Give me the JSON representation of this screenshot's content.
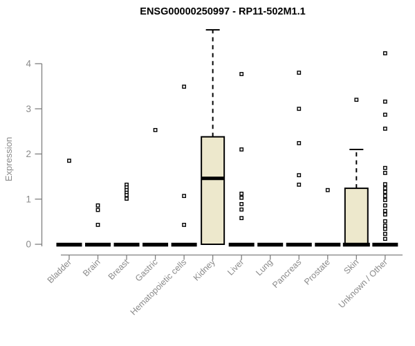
{
  "page": {
    "background": "#ffffff"
  },
  "chart_data": {
    "type": "boxplot",
    "title": "ENSG00000250997 - RP11-502M1.1",
    "ylabel": "Expression",
    "xlabel": "",
    "ylim": [
      0,
      4.9
    ],
    "yticks": [
      0,
      1,
      2,
      3,
      4
    ],
    "grid": false,
    "legend": false,
    "categories": [
      "Bladder",
      "Brain",
      "Breast",
      "Gastric",
      "Hematopoietic cells",
      "Kidney",
      "Liver",
      "Lung",
      "Pancreas",
      "Prostate",
      "Skin",
      "Unknown / Other"
    ],
    "series": [
      {
        "name": "Bladder",
        "min": 0,
        "q1": 0,
        "median": 0,
        "q3": 0,
        "max": 0,
        "outliers": [
          1.85
        ]
      },
      {
        "name": "Brain",
        "min": 0,
        "q1": 0,
        "median": 0,
        "q3": 0,
        "max": 0,
        "outliers": [
          0.86,
          0.76,
          0.43
        ]
      },
      {
        "name": "Breast",
        "min": 0,
        "q1": 0,
        "median": 0,
        "q3": 0,
        "max": 0,
        "outliers": [
          1.32,
          1.26,
          1.2,
          1.14,
          1.09,
          1.01
        ]
      },
      {
        "name": "Gastric",
        "min": 0,
        "q1": 0,
        "median": 0,
        "q3": 0,
        "max": 0,
        "outliers": [
          2.53
        ]
      },
      {
        "name": "Hematopoietic cells",
        "min": 0,
        "q1": 0,
        "median": 0,
        "q3": 0,
        "max": 0,
        "outliers": [
          3.49,
          1.07,
          0.43
        ]
      },
      {
        "name": "Kidney",
        "min": 0,
        "q1": 0,
        "median": 1.46,
        "q3": 2.38,
        "max": 4.75,
        "outliers": []
      },
      {
        "name": "Liver",
        "min": 0,
        "q1": 0,
        "median": 0,
        "q3": 0,
        "max": 0,
        "outliers": [
          3.77,
          2.1,
          1.12,
          1.03,
          0.89,
          0.77,
          0.58
        ]
      },
      {
        "name": "Lung",
        "min": 0,
        "q1": 0,
        "median": 0,
        "q3": 0,
        "max": 0,
        "outliers": []
      },
      {
        "name": "Pancreas",
        "min": 0,
        "q1": 0,
        "median": 0,
        "q3": 0,
        "max": 0,
        "outliers": [
          3.8,
          3.0,
          2.24,
          1.53,
          1.32
        ]
      },
      {
        "name": "Prostate",
        "min": 0,
        "q1": 0,
        "median": 0,
        "q3": 0,
        "max": 0,
        "outliers": [
          1.2
        ]
      },
      {
        "name": "Skin",
        "min": 0,
        "q1": 0,
        "median": 0,
        "q3": 1.24,
        "max": 2.1,
        "outliers": [
          3.2
        ]
      },
      {
        "name": "Unknown / Other",
        "min": 0,
        "q1": 0,
        "median": 0,
        "q3": 0,
        "max": 0,
        "outliers": [
          4.23,
          3.16,
          2.87,
          2.56,
          1.69,
          1.58,
          1.33,
          1.24,
          1.16,
          1.07,
          0.98,
          0.86,
          0.74,
          0.66,
          0.51,
          0.41,
          0.34,
          0.23,
          0.12
        ]
      }
    ],
    "colors": {
      "box_fill": "#EDE8CC",
      "box_stroke": "#000000",
      "median": "#000000",
      "outlier_fill": "#FFFFFF",
      "outlier_stroke": "#000000",
      "axis": "#7F7F7F",
      "tick_label": "#8A8A8A",
      "title": "#000000"
    }
  }
}
